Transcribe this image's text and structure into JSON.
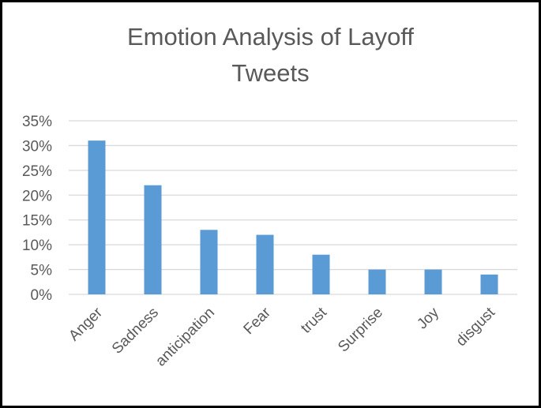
{
  "chart_data": {
    "type": "bar",
    "title_lines": [
      "Emotion Analysis of Layoff",
      "Tweets"
    ],
    "categories": [
      "Anger",
      "Sadness",
      "anticipation",
      "Fear",
      "trust",
      "Surprise",
      "Joy",
      "disgust"
    ],
    "values": [
      31,
      22,
      13,
      12,
      8,
      5,
      5,
      4
    ],
    "y_unit": "%",
    "ylim": [
      0,
      35
    ],
    "y_ticks": [
      "0%",
      "5%",
      "10%",
      "15%",
      "20%",
      "25%",
      "30%",
      "35%"
    ],
    "y_tick_values": [
      0,
      5,
      10,
      15,
      20,
      25,
      30,
      35
    ],
    "grid": true,
    "legend": "none",
    "colors": {
      "bar": "#5b9bd5",
      "grid": "#d9d9d9",
      "text": "#595959",
      "border": "#000000"
    }
  }
}
